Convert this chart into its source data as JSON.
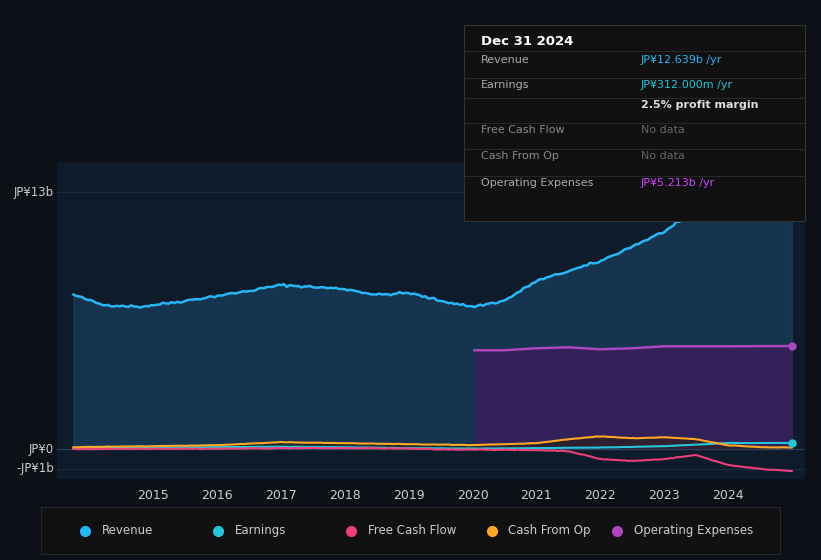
{
  "bg_color": "#0d1117",
  "plot_bg_color": "#0d1b2a",
  "info_box_bg": "#111111",
  "info_box_border": "#333333",
  "info_box_title": "Dec 31 2024",
  "info_box_rows": [
    {
      "label": "Revenue",
      "label_color": "#aaaaaa",
      "value": "JP¥12.639b /yr",
      "value_color": "#29b6f6"
    },
    {
      "label": "Earnings",
      "label_color": "#aaaaaa",
      "value": "JP¥312.000m /yr",
      "value_color": "#26c6da"
    },
    {
      "label": "",
      "label_color": "#aaaaaa",
      "value": "2.5% profit margin",
      "value_color": "#dddddd",
      "bold": true
    },
    {
      "label": "Free Cash Flow",
      "label_color": "#888888",
      "value": "No data",
      "value_color": "#666666"
    },
    {
      "label": "Cash From Op",
      "label_color": "#888888",
      "value": "No data",
      "value_color": "#666666"
    },
    {
      "label": "Operating Expenses",
      "label_color": "#aaaaaa",
      "value": "JP¥5.213b /yr",
      "value_color": "#cc44ff"
    }
  ],
  "ytick_labels": [
    "JP¥13b",
    "JP¥0",
    "-JP¥1b"
  ],
  "ytick_vals": [
    13000000000,
    0,
    -1000000000
  ],
  "xtick_labels": [
    "2015",
    "2016",
    "2017",
    "2018",
    "2019",
    "2020",
    "2021",
    "2022",
    "2023",
    "2024"
  ],
  "xtick_vals": [
    2015,
    2016,
    2017,
    2018,
    2019,
    2020,
    2021,
    2022,
    2023,
    2024
  ],
  "legend": [
    {
      "label": "Revenue",
      "color": "#29b6f6"
    },
    {
      "label": "Earnings",
      "color": "#26c6da"
    },
    {
      "label": "Free Cash Flow",
      "color": "#ec407a"
    },
    {
      "label": "Cash From Op",
      "color": "#ffa726"
    },
    {
      "label": "Operating Expenses",
      "color": "#ab47bc"
    }
  ],
  "year_start": 2013.5,
  "year_end": 2025.2,
  "ymin": -1500000000.0,
  "ymax": 14500000000.0,
  "revenue_color": "#29b6f6",
  "revenue_fill": "#1a4a6e",
  "earnings_color": "#26c6da",
  "fcf_color": "#ec407a",
  "cashop_color": "#ffa726",
  "cashop_fill": "#2a2000",
  "opex_color": "#ab47bc",
  "opex_fill": "#3d1a5c",
  "grid_color": "#1e3050",
  "zero_line_color": "#2a4060"
}
